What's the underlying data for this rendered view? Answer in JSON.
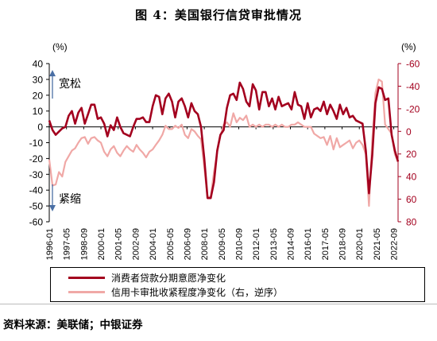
{
  "figure": {
    "title": "图 4：美国银行信贷审批情况",
    "source": "资料来源：美联储；中银证券"
  },
  "chart_data": {
    "type": "line",
    "left_unit": "(%)",
    "right_unit": "(%)",
    "left_ylim": [
      -60,
      40
    ],
    "left_yticks": [
      40,
      30,
      20,
      10,
      0,
      -10,
      -20,
      -30,
      -40,
      -50,
      -60
    ],
    "right_ylim": [
      -60,
      80
    ],
    "right_inverted": true,
    "right_yticks": [
      -60,
      -40,
      -20,
      0,
      20,
      40,
      60,
      80
    ],
    "x_tick_labels": [
      "1996-01",
      "1997-05",
      "1998-09",
      "2000-01",
      "2001-05",
      "2002-09",
      "2004-01",
      "2005-05",
      "2006-09",
      "2008-01",
      "2009-05",
      "2010-09",
      "2012-01",
      "2013-05",
      "2014-09",
      "2016-01",
      "2017-05",
      "2018-09",
      "2020-01",
      "2021-05",
      "2022-09"
    ],
    "annotations": {
      "up": "宽松",
      "down": "紧缩"
    },
    "colors": {
      "series1": "#a3001e",
      "series2": "#f0a8a6"
    },
    "series": [
      {
        "name": "消费者贷款分期意愿净变化",
        "axis": "left",
        "x": [
          1996.0,
          1996.25,
          1996.5,
          1996.75,
          1997.0,
          1997.25,
          1997.5,
          1997.75,
          1998.0,
          1998.25,
          1998.5,
          1998.75,
          1999.0,
          1999.25,
          1999.5,
          1999.75,
          2000.0,
          2000.25,
          2000.5,
          2000.75,
          2001.0,
          2001.25,
          2001.5,
          2001.75,
          2002.0,
          2002.25,
          2002.5,
          2002.75,
          2003.0,
          2003.25,
          2003.5,
          2003.75,
          2004.0,
          2004.25,
          2004.5,
          2004.75,
          2005.0,
          2005.25,
          2005.5,
          2005.75,
          2006.0,
          2006.25,
          2006.5,
          2006.75,
          2007.0,
          2007.25,
          2007.5,
          2007.75,
          2008.0,
          2008.25,
          2008.5,
          2008.75,
          2009.0,
          2009.25,
          2009.5,
          2009.75,
          2010.0,
          2010.25,
          2010.5,
          2010.75,
          2011.0,
          2011.25,
          2011.5,
          2011.75,
          2012.0,
          2012.25,
          2012.5,
          2012.75,
          2013.0,
          2013.25,
          2013.5,
          2013.75,
          2014.0,
          2014.25,
          2014.5,
          2014.75,
          2015.0,
          2015.25,
          2015.5,
          2015.75,
          2016.0,
          2016.25,
          2016.5,
          2016.75,
          2017.0,
          2017.25,
          2017.5,
          2017.75,
          2018.0,
          2018.25,
          2018.5,
          2018.75,
          2019.0,
          2019.25,
          2019.5,
          2019.75,
          2020.0,
          2020.25,
          2020.5,
          2020.75,
          2021.0,
          2021.25,
          2021.5,
          2021.75,
          2022.0,
          2022.25,
          2022.5,
          2022.75,
          2023.0
        ],
        "y": [
          4,
          -2,
          -5,
          -3,
          -1,
          0,
          7,
          10,
          2,
          9,
          12,
          2,
          8,
          14,
          14,
          5,
          6,
          2,
          -6,
          1,
          -2,
          6,
          0,
          -4,
          -5,
          -6,
          0,
          5,
          5,
          6,
          3,
          3,
          13,
          20,
          19,
          8,
          18,
          21,
          16,
          6,
          16,
          18,
          13,
          6,
          15,
          10,
          8,
          0,
          -20,
          -45,
          -45,
          -35,
          -15,
          -5,
          -2,
          12,
          20,
          21,
          17,
          28,
          24,
          16,
          13,
          27,
          23,
          11,
          22,
          22,
          13,
          18,
          11,
          19,
          13,
          14,
          15,
          11,
          22,
          14,
          13,
          5,
          15,
          6,
          11,
          12,
          10,
          16,
          8,
          14,
          10,
          5,
          14,
          8,
          12,
          6,
          7,
          4,
          3,
          2,
          -15,
          -42,
          -18,
          15,
          25,
          24,
          17,
          18,
          -5,
          -15,
          -22
        ]
      },
      {
        "name": "信用卡审批收紧程度净变化（右，逆序）",
        "axis": "right",
        "x": [
          1996.0,
          1996.25,
          1996.5,
          1996.75,
          1997.0,
          1997.25,
          1997.5,
          1997.75,
          1998.0,
          1998.25,
          1998.5,
          1998.75,
          1999.0,
          1999.25,
          1999.5,
          1999.75,
          2000.0,
          2000.25,
          2000.5,
          2000.75,
          2001.0,
          2001.25,
          2001.5,
          2001.75,
          2002.0,
          2002.25,
          2002.5,
          2002.75,
          2003.0,
          2003.25,
          2003.5,
          2003.75,
          2004.0,
          2004.25,
          2004.5,
          2004.75,
          2005.0,
          2005.25,
          2005.5,
          2005.75,
          2006.0,
          2006.25,
          2006.5,
          2006.75,
          2007.0,
          2007.25,
          2007.5,
          2007.75,
          2008.0,
          2008.25,
          2008.5,
          2008.75,
          2009.0,
          2009.25,
          2009.5,
          2009.75,
          2010.0,
          2010.25,
          2010.5,
          2010.75,
          2011.0,
          2011.25,
          2011.5,
          2011.75,
          2012.0,
          2012.25,
          2012.5,
          2012.75,
          2013.0,
          2013.25,
          2013.5,
          2013.75,
          2014.0,
          2014.25,
          2014.5,
          2014.75,
          2015.0,
          2015.25,
          2015.5,
          2015.75,
          2016.0,
          2016.25,
          2016.5,
          2016.75,
          2017.0,
          2017.25,
          2017.5,
          2017.75,
          2018.0,
          2018.25,
          2018.5,
          2018.75,
          2019.0,
          2019.25,
          2019.5,
          2019.75,
          2020.0,
          2020.25,
          2020.5,
          2020.75,
          2021.0,
          2021.25,
          2021.5,
          2021.75,
          2022.0,
          2022.25,
          2022.5,
          2022.75,
          2023.0
        ],
        "y": [
          25,
          48,
          47,
          36,
          40,
          27,
          22,
          17,
          15,
          10,
          6,
          5,
          11,
          6,
          5,
          8,
          10,
          18,
          22,
          16,
          13,
          19,
          22,
          17,
          13,
          16,
          18,
          12,
          16,
          19,
          23,
          18,
          16,
          12,
          8,
          3,
          -5,
          -2,
          -2,
          -5,
          -3,
          -6,
          3,
          6,
          -2,
          0,
          4,
          7,
          32,
          58,
          58,
          36,
          18,
          4,
          -6,
          -8,
          -4,
          -16,
          -8,
          -12,
          -10,
          -14,
          -4,
          -6,
          -4,
          -6,
          -4,
          -6,
          -6,
          -4,
          -6,
          -4,
          -6,
          -4,
          -4,
          -6,
          -6,
          -8,
          -6,
          -4,
          -4,
          -4,
          2,
          4,
          6,
          5,
          12,
          4,
          16,
          6,
          14,
          12,
          10,
          8,
          15,
          10,
          8,
          12,
          20,
          66,
          8,
          -34,
          -46,
          -44,
          -6,
          -2,
          2,
          20,
          27
        ]
      }
    ]
  }
}
